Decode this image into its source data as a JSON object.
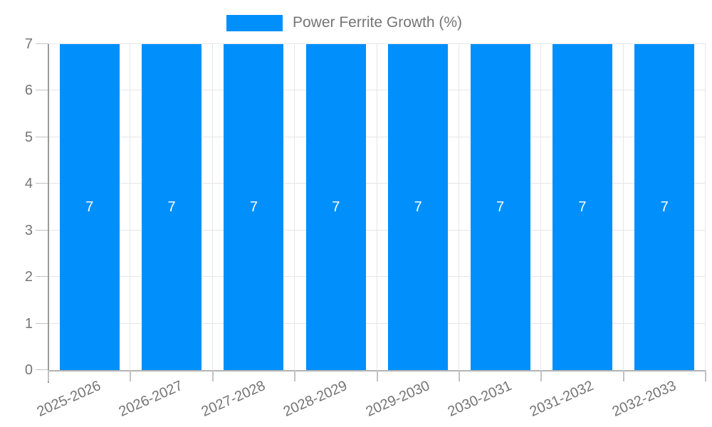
{
  "chart_data": {
    "type": "bar",
    "title": "",
    "legend": {
      "position": "top",
      "label": "Power Ferrite Growth (%)"
    },
    "categories": [
      "2025-2026",
      "2026-2027",
      "2027-2028",
      "2028-2029",
      "2029-2030",
      "2030-2031",
      "2031-2032",
      "2032-2033"
    ],
    "series": [
      {
        "name": "Power Ferrite Growth (%)",
        "color": "#008FFB",
        "values": [
          7,
          7,
          7,
          7,
          7,
          7,
          7,
          7
        ]
      }
    ],
    "bar_value_labels": [
      "7",
      "7",
      "7",
      "7",
      "7",
      "7",
      "7",
      "7"
    ],
    "ylim": [
      0,
      7
    ],
    "yticks": [
      0,
      1,
      2,
      3,
      4,
      5,
      6,
      7
    ],
    "grid": true,
    "colors": {
      "bar": "#008FFB",
      "text": "#757575",
      "grid": "#e6e6e6",
      "tick": "#c2c2c2",
      "axis": "#9a9a9a",
      "baseline": "#b3b3b3",
      "value_label": "#ffffff"
    }
  }
}
